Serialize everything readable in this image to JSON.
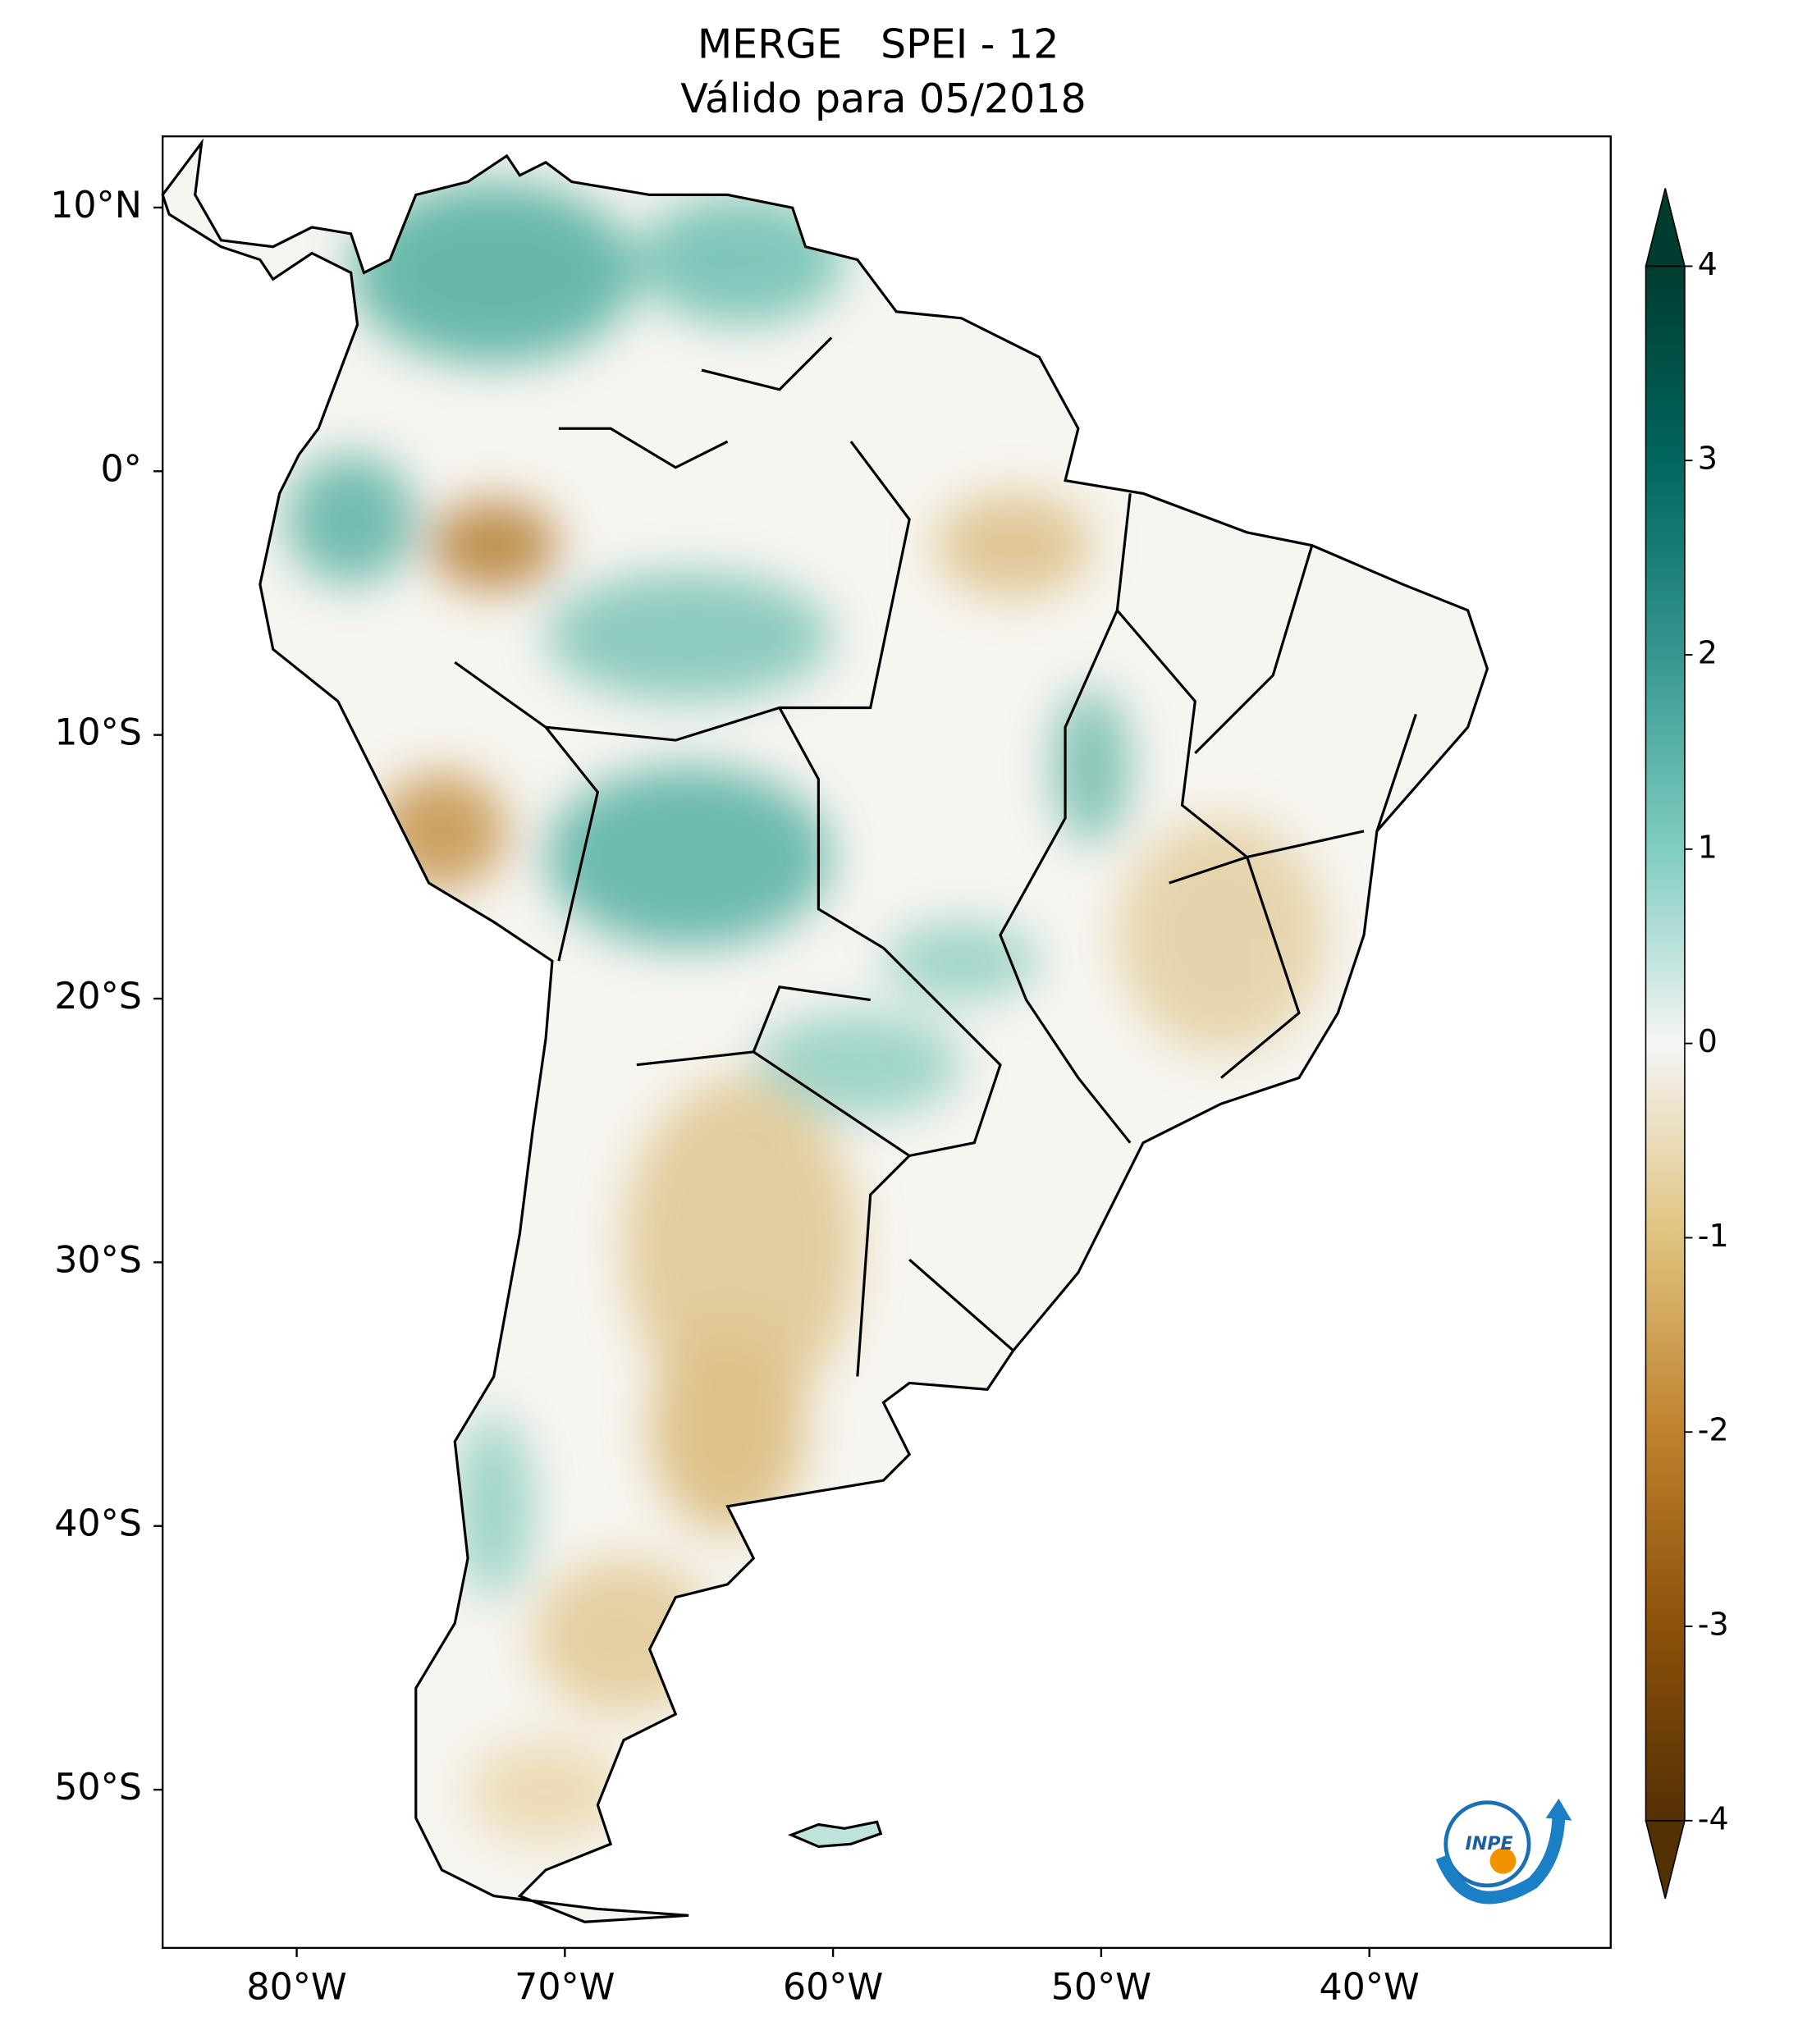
{
  "map": {
    "title": "MERGE   SPEI - 12",
    "subtitle": "Válido para 05/2018",
    "xlim": [
      -85,
      -31
    ],
    "ylim": [
      -56,
      12.7
    ],
    "xticks": [
      {
        "value": -80,
        "label": "80°W"
      },
      {
        "value": -70,
        "label": "70°W"
      },
      {
        "value": -60,
        "label": "60°W"
      },
      {
        "value": -50,
        "label": "50°W"
      },
      {
        "value": -40,
        "label": "40°W"
      }
    ],
    "yticks": [
      {
        "value": 10,
        "label": "10°N"
      },
      {
        "value": 0,
        "label": "0°"
      },
      {
        "value": -10,
        "label": "10°S"
      },
      {
        "value": -20,
        "label": "20°S"
      },
      {
        "value": -30,
        "label": "30°S"
      },
      {
        "value": -40,
        "label": "40°S"
      },
      {
        "value": -50,
        "label": "50°S"
      }
    ],
    "colorbar": {
      "lim": [
        -4,
        4
      ],
      "ticks": [
        4,
        3,
        2,
        1,
        0,
        -1,
        -2,
        -3,
        -4
      ]
    },
    "logo": "INPE"
  }
}
